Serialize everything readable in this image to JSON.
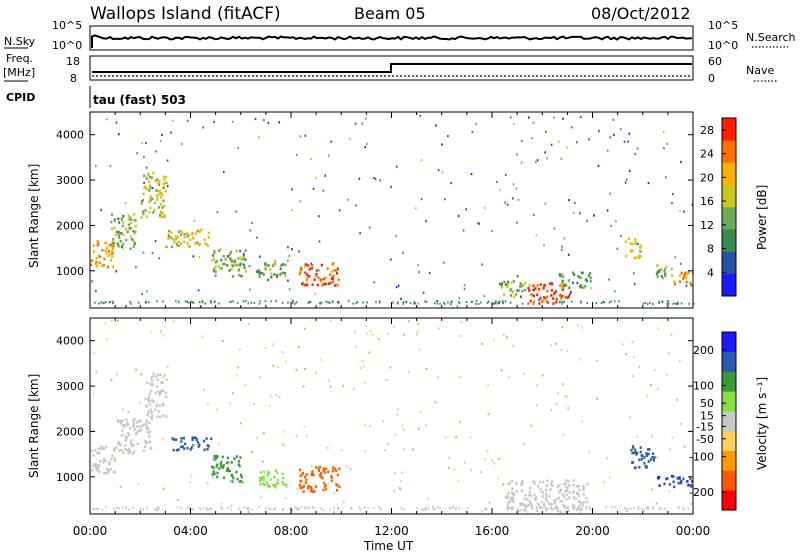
{
  "header": {
    "station": "Wallops Island (fitACF)",
    "beam": "Beam 05",
    "date": "08/Oct/2012"
  },
  "summary": {
    "nsky_label": "N.Sky",
    "nsky_ticks": [
      "10^5",
      "10^0"
    ],
    "nsearch_label": "N.Search",
    "nsearch_ticks": [
      "10^5",
      "10^0"
    ],
    "freq_label_line1": "Freq.",
    "freq_label_line2": "[MHz]",
    "freq_ticks": [
      "18",
      "8"
    ],
    "nave_label": "Nave",
    "nave_ticks": [
      "60",
      "0"
    ],
    "cpid_label": "CPID",
    "cpid_value": "tau (fast) 503"
  },
  "colors": {
    "power_scale": [
      "#1a1aff",
      "#2a4fa8",
      "#3a8a50",
      "#6aaa5a",
      "#c8c820",
      "#ffb000",
      "#ff7000",
      "#ff2000"
    ],
    "velocity_scale": [
      "#ff0000",
      "#ff5a00",
      "#ff9a00",
      "#ffd060",
      "#c8c8c8",
      "#88dd44",
      "#3a9a3a",
      "#2a5ab0",
      "#1a1aff"
    ]
  },
  "chart_data": [
    {
      "type": "heatmap",
      "title": "",
      "xlabel": "Time UT",
      "ylabel": "Slant Range [km]",
      "xlim": [
        0,
        24
      ],
      "ylim": [
        180,
        4500
      ],
      "x_tick_labels": [
        "00:00",
        "04:00",
        "08:00",
        "12:00",
        "16:00",
        "20:00",
        "00:00"
      ],
      "y_tick_labels": [
        "1000",
        "2000",
        "3000",
        "4000"
      ],
      "colorbar_label": "Power [dB]",
      "colorbar_ticks": [
        "4",
        "8",
        "12",
        "16",
        "20",
        "24",
        "28"
      ],
      "colorbar_range": [
        0,
        30
      ],
      "regions": [
        {
          "t0": 0.0,
          "t1": 0.9,
          "r0": 1100,
          "r1": 1700,
          "value": 22
        },
        {
          "t0": 0.8,
          "t1": 1.8,
          "r0": 1500,
          "r1": 2300,
          "value": 14
        },
        {
          "t0": 2.0,
          "t1": 3.0,
          "r0": 2200,
          "r1": 3200,
          "value": 16
        },
        {
          "t0": 3.0,
          "t1": 4.8,
          "r0": 1550,
          "r1": 1950,
          "value": 18
        },
        {
          "t0": 4.8,
          "t1": 6.2,
          "r0": 900,
          "r1": 1500,
          "value": 14
        },
        {
          "t0": 6.6,
          "t1": 7.8,
          "r0": 800,
          "r1": 1200,
          "value": 12
        },
        {
          "t0": 8.3,
          "t1": 9.9,
          "r0": 700,
          "r1": 1200,
          "value": 26
        },
        {
          "t0": 16.2,
          "t1": 17.5,
          "r0": 450,
          "r1": 800,
          "value": 14
        },
        {
          "t0": 17.4,
          "t1": 19.1,
          "r0": 300,
          "r1": 750,
          "value": 28
        },
        {
          "t0": 18.6,
          "t1": 19.9,
          "r0": 650,
          "r1": 1000,
          "value": 12
        },
        {
          "t0": 21.2,
          "t1": 21.9,
          "r0": 1300,
          "r1": 1750,
          "value": 18
        },
        {
          "t0": 22.5,
          "t1": 23.2,
          "r0": 850,
          "r1": 1150,
          "value": 14
        },
        {
          "t0": 23.2,
          "t1": 24.0,
          "r0": 700,
          "r1": 1000,
          "value": 22
        }
      ]
    },
    {
      "type": "heatmap",
      "title": "",
      "xlabel": "Time UT",
      "ylabel": "Slant Range [km]",
      "xlim": [
        0,
        24
      ],
      "ylim": [
        180,
        4500
      ],
      "x_tick_labels": [
        "00:00",
        "04:00",
        "08:00",
        "12:00",
        "16:00",
        "20:00",
        "00:00"
      ],
      "y_tick_labels": [
        "1000",
        "2000",
        "3000",
        "4000"
      ],
      "colorbar_label": "Velocity [m s⁻¹]",
      "colorbar_ticks": [
        "-200",
        "-100",
        "-50",
        "-15",
        "15",
        "50",
        "100",
        "200"
      ],
      "colorbar_range": [
        -250,
        250
      ],
      "regions": [
        {
          "t0": 0.0,
          "t1": 1.0,
          "r0": 1100,
          "r1": 1700,
          "value": 0
        },
        {
          "t0": 1.0,
          "t1": 2.4,
          "r0": 1500,
          "r1": 2300,
          "value": 0
        },
        {
          "t0": 2.2,
          "t1": 3.0,
          "r0": 2300,
          "r1": 3300,
          "value": 0
        },
        {
          "t0": 3.2,
          "t1": 4.8,
          "r0": 1600,
          "r1": 1900,
          "value": 180
        },
        {
          "t0": 4.8,
          "t1": 6.0,
          "r0": 900,
          "r1": 1500,
          "value": 60
        },
        {
          "t0": 6.6,
          "t1": 7.8,
          "r0": 800,
          "r1": 1200,
          "value": 30
        },
        {
          "t0": 8.3,
          "t1": 9.9,
          "r0": 700,
          "r1": 1250,
          "value": -120
        },
        {
          "t0": 16.5,
          "t1": 19.8,
          "r0": 250,
          "r1": 950,
          "value": 0
        },
        {
          "t0": 21.5,
          "t1": 22.5,
          "r0": 1200,
          "r1": 1700,
          "value": 180
        },
        {
          "t0": 22.5,
          "t1": 24.0,
          "r0": 800,
          "r1": 1050,
          "value": 200
        }
      ]
    }
  ]
}
